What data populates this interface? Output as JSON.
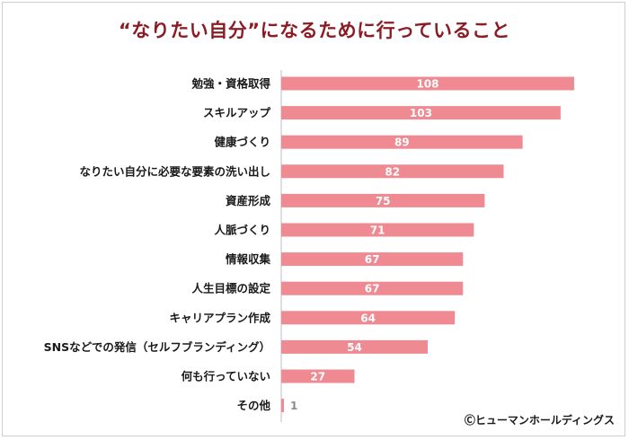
{
  "chart_data": {
    "type": "bar",
    "orientation": "horizontal",
    "title": "“なりたい自分”になるために行っていること",
    "categories": [
      "勉強・資格取得",
      "スキルアップ",
      "健康づくり",
      "なりたい自分に必要な要素の洗い出し",
      "資産形成",
      "人脈づくり",
      "情報収集",
      "人生目標の設定",
      "キャリアプラン作成",
      "SNSなどでの発信（セルフブランディング）",
      "何も行っていない",
      "その他"
    ],
    "values": [
      108,
      103,
      89,
      82,
      75,
      71,
      67,
      67,
      64,
      54,
      27,
      1
    ],
    "xlim": [
      0,
      110
    ],
    "grid": false,
    "bar_color": "#ef8a92",
    "title_color": "#8b1c24"
  },
  "credit": "Ⓒヒューマンホールディングス"
}
